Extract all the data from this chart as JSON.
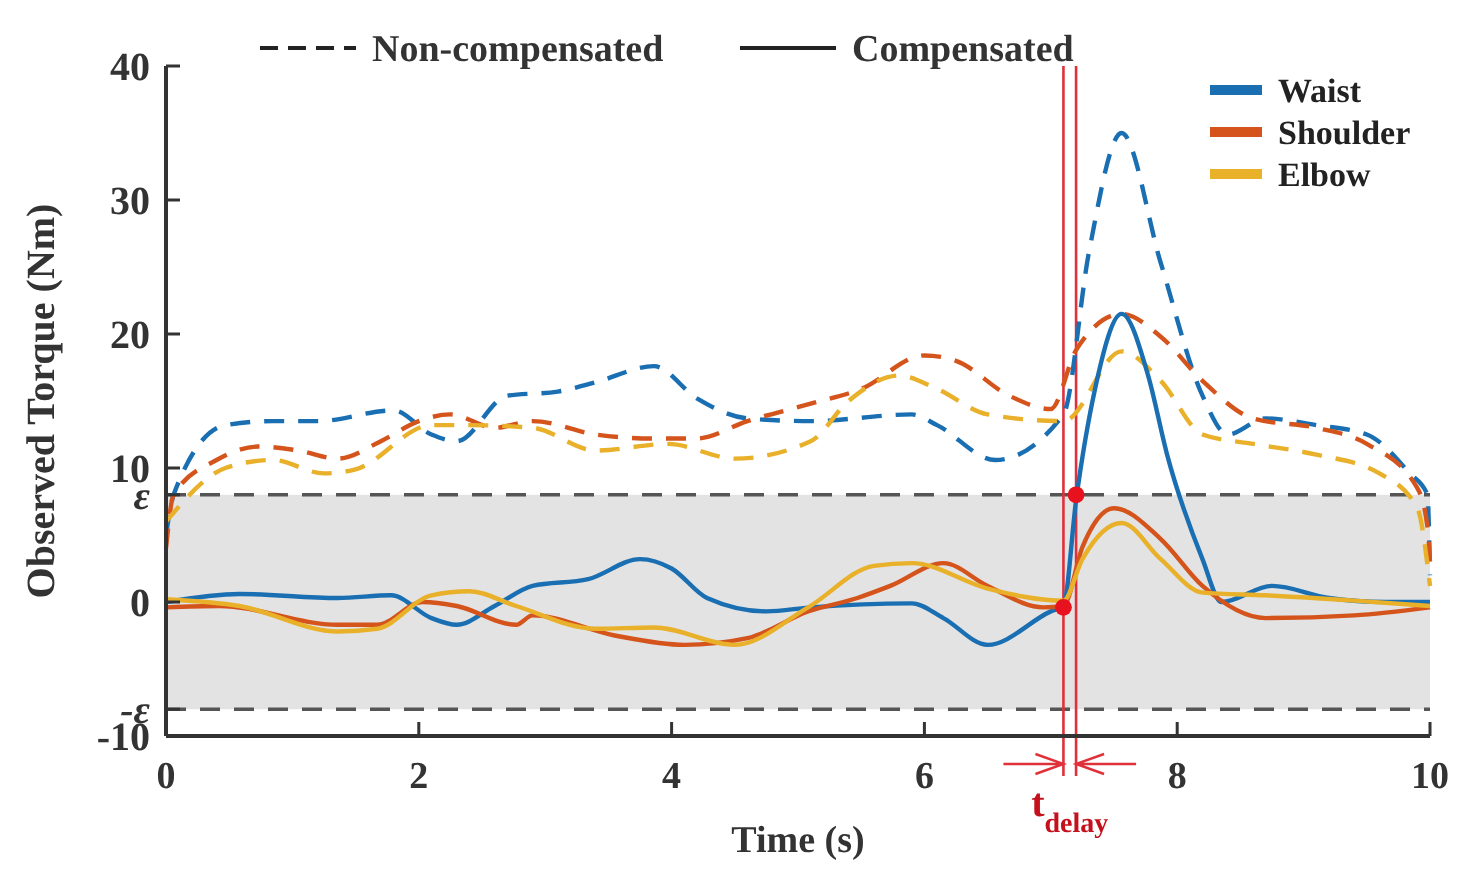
{
  "chart_data": {
    "type": "line",
    "xlabel": "Time (s)",
    "ylabel": "Observed Torque (Nm)",
    "xlim": [
      0,
      10
    ],
    "xticks": [
      0,
      2,
      4,
      6,
      8,
      10
    ],
    "ylim": [
      -10,
      40
    ],
    "yticks": [
      -10,
      {
        "value": -8,
        "label": "-ε"
      },
      0,
      {
        "value": 8,
        "label": "ε"
      },
      10,
      20,
      30,
      40
    ],
    "grid": false,
    "legend": "top right",
    "series": [
      {
        "color": "#1a6fb3",
        "line_style": "dashed",
        "x": [
          0,
          0.06,
          0.47,
          0.84,
          1.2,
          1.8,
          2.1,
          2.3,
          2.7,
          3.1,
          3.4,
          3.86,
          4.2,
          4.6,
          5.1,
          5.9,
          6.1,
          6.56,
          7.1,
          7.3,
          7.56,
          7.87,
          8.2,
          8.4,
          8.7,
          9.1,
          9.5,
          9.84,
          9.98,
          10
        ],
        "values": [
          5,
          8,
          13.2,
          13.5,
          13.5,
          14.3,
          12.5,
          12,
          15.4,
          15.7,
          16.4,
          17.6,
          15.2,
          13.7,
          13.5,
          14,
          13.2,
          10.6,
          14,
          26,
          35,
          25.3,
          15.4,
          12.5,
          13.7,
          13.2,
          12.5,
          9.6,
          8,
          2
        ]
      },
      {
        "color": "#d4541c",
        "line_style": "dashed",
        "x": [
          0,
          0.06,
          0.4,
          0.73,
          1.05,
          1.36,
          1.7,
          2.0,
          2.25,
          2.6,
          2.9,
          3.4,
          3.86,
          4.2,
          4.6,
          5.1,
          5.5,
          6.0,
          6.25,
          6.67,
          7.0,
          7.2,
          7.56,
          7.87,
          8.2,
          8.6,
          9.1,
          9.5,
          9.9,
          9.98,
          10
        ],
        "values": [
          4,
          8,
          10.6,
          11.6,
          11.3,
          10.7,
          12,
          13.5,
          14,
          13,
          13.5,
          12.5,
          12.2,
          12.2,
          13.5,
          14.8,
          15.9,
          18.4,
          18,
          15.4,
          14.4,
          18.8,
          21.5,
          19.8,
          16.5,
          13.7,
          13,
          11.8,
          8.5,
          5.6,
          3
        ]
      },
      {
        "color": "#e9b02a",
        "line_style": "dashed",
        "x": [
          0,
          0.47,
          0.84,
          1.25,
          1.5,
          2.1,
          2.4,
          2.9,
          3.4,
          3.97,
          4.5,
          5.1,
          5.4,
          5.8,
          6.1,
          6.5,
          7.1,
          7.56,
          7.87,
          8.2,
          8.6,
          9.1,
          9.6,
          9.9,
          10
        ],
        "values": [
          6,
          10,
          10.6,
          9.6,
          9.9,
          13.2,
          13.2,
          13,
          11.3,
          11.8,
          10.7,
          12,
          15,
          16.9,
          15.9,
          14,
          13.5,
          18.7,
          16.5,
          12.5,
          11.8,
          11,
          9.6,
          7,
          1.2
        ]
      },
      {
        "name": "Waist",
        "color": "#1a6fb3",
        "line_style": "solid",
        "x": [
          0,
          0.58,
          1.36,
          1.78,
          2.1,
          2.3,
          2.6,
          2.9,
          3.34,
          3.75,
          4.0,
          4.28,
          4.75,
          5.1,
          5.9,
          6.15,
          6.5,
          7.0,
          7.1,
          7.2,
          7.35,
          7.56,
          7.77,
          7.92,
          8.2,
          8.35,
          8.75,
          9.2,
          9.64,
          10
        ],
        "values": [
          0,
          0.6,
          0.3,
          0.5,
          -1.2,
          -1.7,
          -0.3,
          1.2,
          1.7,
          3.2,
          2.5,
          0.3,
          -0.7,
          -0.4,
          -0.1,
          -1.2,
          -3.2,
          -0.7,
          -0.3,
          7.6,
          15.9,
          21.5,
          16.9,
          11,
          3.2,
          0,
          1.2,
          0.3,
          0,
          0
        ]
      },
      {
        "name": "Shoulder",
        "color": "#d4541c",
        "line_style": "solid",
        "x": [
          0,
          0.42,
          1.36,
          1.67,
          2.03,
          2.3,
          2.77,
          2.9,
          3.55,
          4.1,
          4.6,
          5.08,
          5.47,
          5.73,
          6.15,
          6.5,
          6.94,
          7.1,
          7.25,
          7.5,
          7.87,
          8.2,
          8.7,
          9.4,
          10
        ],
        "values": [
          -0.4,
          -0.3,
          -1.7,
          -1.7,
          0,
          -0.3,
          -1.7,
          -1,
          -2.5,
          -3.2,
          -2.7,
          -0.7,
          0.3,
          1.2,
          2.9,
          1.2,
          -0.4,
          -0.3,
          4.1,
          7,
          4.7,
          1.2,
          -1.2,
          -1,
          -0.4
        ]
      },
      {
        "name": "Elbow",
        "color": "#e9b02a",
        "line_style": "solid",
        "x": [
          0,
          0.58,
          1.36,
          1.67,
          2.1,
          2.4,
          2.77,
          3.4,
          3.86,
          4.5,
          5.08,
          5.6,
          5.9,
          6.5,
          7.1,
          7.25,
          7.56,
          7.87,
          8.2,
          8.7,
          9.4,
          10
        ],
        "values": [
          0.2,
          -0.3,
          -2.2,
          -2,
          0.5,
          0.8,
          -0.3,
          -2,
          -1.9,
          -3.2,
          -0.4,
          2.7,
          2.9,
          1,
          0.1,
          3.2,
          5.9,
          3.2,
          0.7,
          0.5,
          0.1,
          -0.3
        ]
      },
      {
        "type": "scatter",
        "color": "#e8121e",
        "marker": "circle",
        "x": [
          7.1,
          7.2
        ],
        "values": [
          -0.4,
          8
        ]
      }
    ],
    "bands": [
      {
        "axis": "y",
        "from": -8,
        "to": 8,
        "color": "#e3e3e3"
      }
    ],
    "ref_lines": [
      {
        "axis": "y",
        "value": 8,
        "color": "#555555",
        "line_style": "dashed"
      },
      {
        "axis": "y",
        "value": -8,
        "color": "#555555",
        "line_style": "dashed"
      },
      {
        "axis": "x",
        "value": 7.1,
        "color": "#e0303a",
        "line_style": "solid"
      },
      {
        "axis": "x",
        "value": 7.2,
        "color": "#e0303a",
        "line_style": "solid"
      }
    ],
    "annotations": [
      "Non-compensated",
      "Compensated",
      {
        "text": "t$_{delay}$",
        "x": 7.15,
        "y": -10
      }
    ]
  }
}
